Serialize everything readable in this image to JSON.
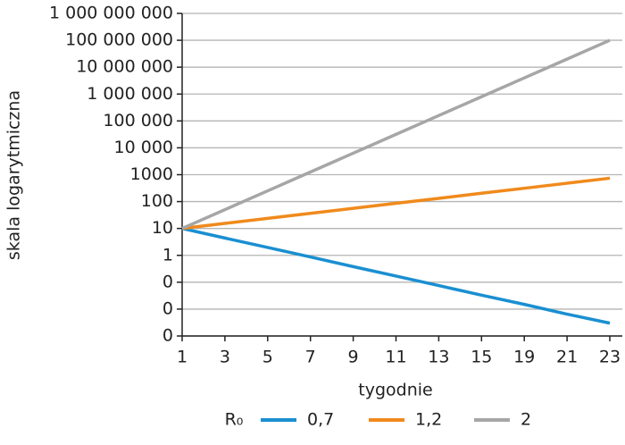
{
  "chart_data": {
    "type": "line",
    "y_label": "skala logarytmiczna",
    "x_label": "tygodnie",
    "legend_title": "R₀",
    "categories": [
      "1",
      "3",
      "5",
      "7",
      "9",
      "11",
      "13",
      "15",
      "19",
      "21",
      "23"
    ],
    "series": [
      {
        "name": "0,7",
        "color": "#1a8fd1",
        "values": [
          10,
          4.4,
          1.96,
          0.87,
          0.38,
          0.17,
          0.075,
          0.033,
          0.015,
          0.0065,
          0.003
        ]
      },
      {
        "name": "1,2",
        "color": "#f08a1c",
        "values": [
          10,
          15.4,
          23.7,
          36.4,
          56,
          86.1,
          132,
          204,
          313,
          481,
          740
        ]
      },
      {
        "name": "2",
        "color": "#a6a6a6",
        "values": [
          10,
          50,
          251,
          1259,
          6310,
          31623,
          158489,
          794328,
          3981072,
          19952623,
          100000000
        ]
      }
    ],
    "log_scale": true,
    "ylim": [
      0.001,
      1000000000
    ],
    "yticks": [
      {
        "value": 1000000000,
        "label": "1 000 000 000"
      },
      {
        "value": 100000000,
        "label": "100 000 000"
      },
      {
        "value": 10000000,
        "label": "10 000 000"
      },
      {
        "value": 1000000,
        "label": "1 000 000"
      },
      {
        "value": 100000,
        "label": "100 000"
      },
      {
        "value": 10000,
        "label": "10 000"
      },
      1000,
      100,
      10,
      1,
      {
        "value": 0.1,
        "label": "0"
      },
      {
        "value": 0.01,
        "label": "0"
      },
      {
        "value": 0.001,
        "label": "0"
      }
    ],
    "grid": true
  }
}
